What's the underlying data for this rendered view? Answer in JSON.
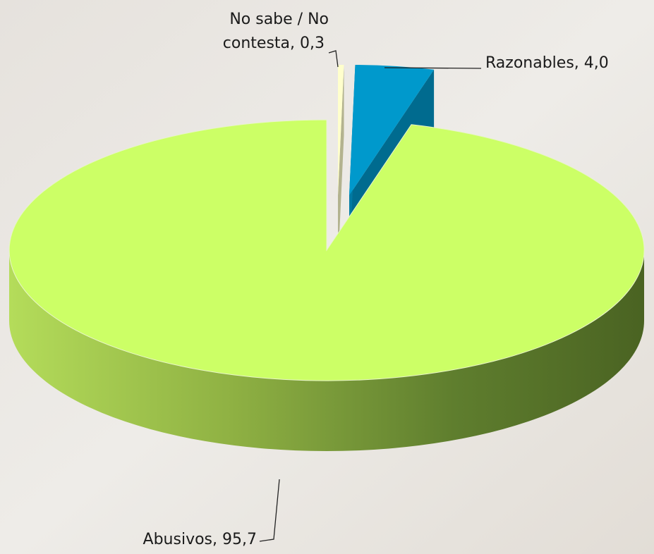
{
  "chart_data": {
    "type": "pie3d",
    "values": [
      0.3,
      4.0,
      95.7
    ],
    "value_labels": [
      "No sabe / No contesta, 0,3",
      "Razonables, 4,0",
      "Abusivos, 95,7"
    ],
    "colors": [
      "#ffffcc",
      "#0099cc",
      "#ccff66"
    ]
  }
}
